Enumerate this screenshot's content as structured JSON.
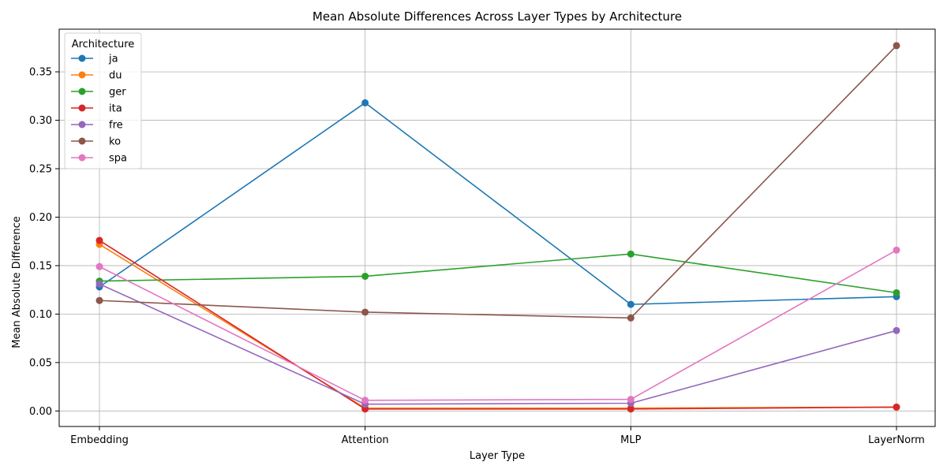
{
  "chart_data": {
    "type": "line",
    "title": "Mean Absolute Differences Across Layer Types by Architecture",
    "xlabel": "Layer Type",
    "ylabel": "Mean Absolute Difference",
    "categories": [
      "Embedding",
      "Attention",
      "MLP",
      "LayerNorm"
    ],
    "ylim": [
      -0.016,
      0.394
    ],
    "yticks": [
      0.0,
      0.05,
      0.1,
      0.15,
      0.2,
      0.25,
      0.3,
      0.35
    ],
    "ytick_labels": [
      "0.00",
      "0.05",
      "0.10",
      "0.15",
      "0.20",
      "0.25",
      "0.30",
      "0.35"
    ],
    "grid": true,
    "legend": {
      "title": "Architecture",
      "placement": "top-left"
    },
    "series": [
      {
        "name": "ja",
        "color": "#1f77b4",
        "values": [
          0.128,
          0.318,
          0.11,
          0.118
        ]
      },
      {
        "name": "du",
        "color": "#ff7f0e",
        "values": [
          0.172,
          0.003,
          0.003,
          0.004
        ]
      },
      {
        "name": "ger",
        "color": "#2ca02c",
        "values": [
          0.134,
          0.139,
          0.162,
          0.122
        ]
      },
      {
        "name": "ita",
        "color": "#d62728",
        "values": [
          0.176,
          0.002,
          0.002,
          0.004
        ]
      },
      {
        "name": "fre",
        "color": "#9467bd",
        "values": [
          0.131,
          0.007,
          0.008,
          0.083
        ]
      },
      {
        "name": "ko",
        "color": "#8c564b",
        "values": [
          0.114,
          0.102,
          0.096,
          0.377
        ]
      },
      {
        "name": "spa",
        "color": "#e377c2",
        "values": [
          0.149,
          0.011,
          0.012,
          0.166
        ]
      }
    ]
  }
}
